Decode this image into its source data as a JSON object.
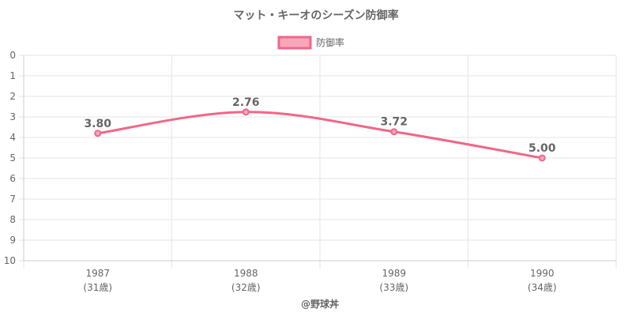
{
  "chart_data": {
    "type": "line",
    "title": "マット・キーオのシーズン防御率",
    "xlabel": "@野球丼",
    "ylabel": "",
    "categories": [
      "1987",
      "1988",
      "1989",
      "1990"
    ],
    "category_sublabels": [
      "(31歳)",
      "(32歳)",
      "(33歳)",
      "(34歳)"
    ],
    "series": [
      {
        "name": "防御率",
        "values": [
          3.8,
          2.76,
          3.72,
          5.0
        ],
        "labels": [
          "3.80",
          "2.76",
          "3.72",
          "5.00"
        ]
      }
    ],
    "ylim": [
      0,
      10
    ],
    "y_reversed": true,
    "y_ticks": [
      "0",
      "1",
      "2",
      "3",
      "4",
      "5",
      "6",
      "7",
      "8",
      "9",
      "10"
    ],
    "grid": true,
    "legend_position": "top-center",
    "colors": {
      "line": "#f06788",
      "legend_fill": "#f8a7bb",
      "grid": "#e6e6e6",
      "text": "#666666"
    }
  }
}
